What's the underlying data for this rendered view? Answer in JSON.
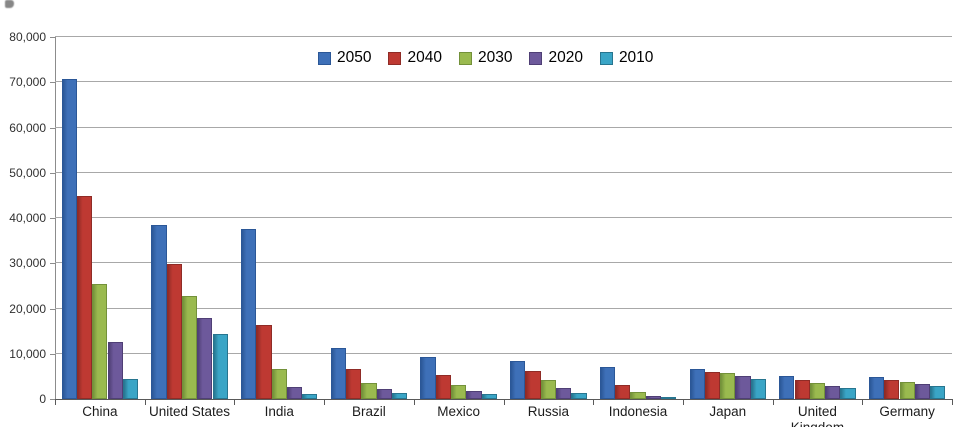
{
  "chart_data": {
    "type": "bar",
    "title": "",
    "xlabel": "",
    "ylabel": "",
    "ylim": [
      0,
      80000
    ],
    "ytick_step": 10000,
    "ytick_labels": [
      "0",
      "10,000",
      "20,000",
      "30,000",
      "40,000",
      "50,000",
      "60,000",
      "70,000",
      "80,000"
    ],
    "grid": true,
    "legend_position": "top-center",
    "categories": [
      "China",
      "United States",
      "India",
      "Brazil",
      "Mexico",
      "Russia",
      "Indonesia",
      "Japan",
      "United Kingdom",
      "Germany"
    ],
    "series": [
      {
        "name": "2050",
        "color": "#3E70B8",
        "color_dark": "#2B5797",
        "values": [
          70700,
          38500,
          37600,
          11300,
          9300,
          8500,
          7000,
          6600,
          5000,
          4900
        ]
      },
      {
        "name": "2040",
        "color": "#BE3932",
        "color_dark": "#8F2B26",
        "values": [
          44900,
          29800,
          16400,
          6600,
          5400,
          6200,
          3000,
          5900,
          4300,
          4300
        ]
      },
      {
        "name": "2030",
        "color": "#9ABA4F",
        "color_dark": "#73913A",
        "values": [
          25500,
          22700,
          6600,
          3600,
          3100,
          4200,
          1500,
          5800,
          3500,
          3800
        ]
      },
      {
        "name": "2020",
        "color": "#6D599B",
        "color_dark": "#4F3F75",
        "values": [
          12500,
          17900,
          2700,
          2200,
          1800,
          2500,
          700,
          5000,
          2900,
          3300
        ]
      },
      {
        "name": "2010",
        "color": "#3AA5C6",
        "color_dark": "#27758F",
        "values": [
          4500,
          14400,
          1200,
          1300,
          1000,
          1300,
          400,
          4400,
          2400,
          2800
        ]
      }
    ],
    "axis_colors": {
      "gridline": "#a8a8a8",
      "axis": "#595959"
    }
  }
}
